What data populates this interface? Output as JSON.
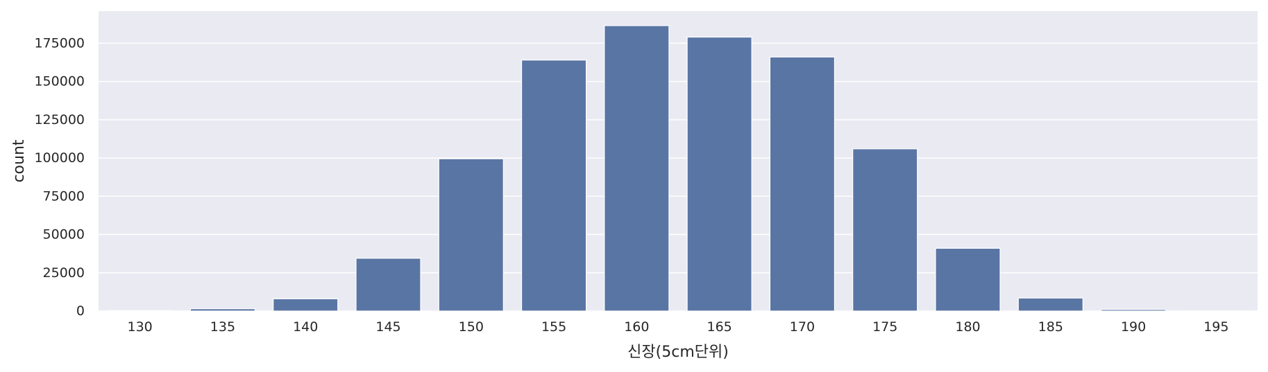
{
  "chart_data": {
    "type": "bar",
    "categories": [
      "130",
      "135",
      "140",
      "145",
      "150",
      "155",
      "160",
      "165",
      "170",
      "175",
      "180",
      "185",
      "190",
      "195"
    ],
    "values": [
      300,
      1500,
      8000,
      34500,
      99500,
      164000,
      186500,
      179000,
      166000,
      106000,
      41000,
      8500,
      1000,
      100
    ],
    "xlabel": "신장(5cm단위)",
    "ylabel": "count",
    "ylim": [
      0,
      196000
    ],
    "yticks": [
      0,
      25000,
      50000,
      75000,
      100000,
      125000,
      150000,
      175000
    ],
    "ytick_labels": [
      "0",
      "25000",
      "50000",
      "75000",
      "100000",
      "125000",
      "150000",
      "175000"
    ],
    "grid": true,
    "colors": {
      "bar": "#5975a4",
      "plot_bg": "#eaeaf2",
      "grid": "#ffffff"
    }
  }
}
